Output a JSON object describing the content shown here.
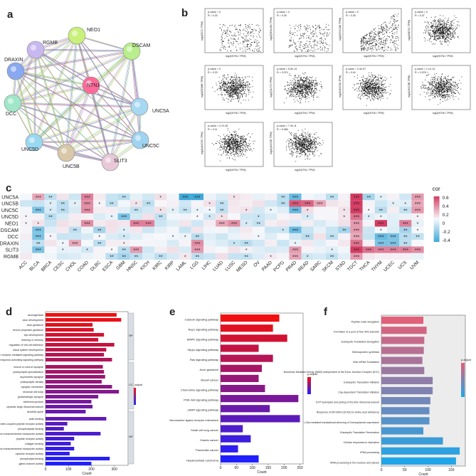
{
  "panels": {
    "a": "a",
    "b": "b",
    "c": "c",
    "d": "d",
    "e": "e",
    "f": "f"
  },
  "network": {
    "nodes": [
      "NTN1",
      "NEO1",
      "DSCAM",
      "UNC5A",
      "UNC5C",
      "SLIT3",
      "UNC5B",
      "UNC5D",
      "DCC",
      "DRAXIN",
      "RGMB"
    ]
  },
  "scatter": [
    {
      "p": "p-value = 0",
      "r": "R = 0.33",
      "ylabel": "log2(DCC TPM)",
      "xlabel": "log2(NTN1 TPM)"
    },
    {
      "p": "p-value = 0",
      "r": "R = 0.39",
      "ylabel": "log2(DRAXIN TPM)",
      "xlabel": "log2(NTN1 TPM)"
    },
    {
      "p": "p-value = 0",
      "r": "R = 0.25",
      "ylabel": "log2(DSCAM TPM)",
      "xlabel": "log2(NTN1 TPM)"
    },
    {
      "p": "p-value = 0",
      "r": "R = 0.37",
      "ylabel": "log2(NEO1 TPM)",
      "xlabel": "log2(NTN1 TPM)"
    },
    {
      "p": "p-value = 0",
      "r": "R = 0.23",
      "ylabel": "log2(RGMB TPM)",
      "xlabel": "log2(NTN1 TPM)"
    },
    {
      "p": "p-value = 5.5e-13",
      "r": "R = 0.074",
      "ylabel": "log2(SLIT3 TPM)",
      "xlabel": "log2(NTN1 TPM)"
    },
    {
      "p": "p-value = 3.4e-57",
      "r": "R = 0.16",
      "ylabel": "log2(UNC5A TPM)",
      "xlabel": "log2(NTN1 TPM)"
    },
    {
      "p": "p-value = 1.1e-14",
      "r": "R = 0.078",
      "ylabel": "log2(UNC5B TPM)",
      "xlabel": "log2(NTN1 TPM)"
    },
    {
      "p": "p-value = 4.7e-28",
      "r": "R = 0.11",
      "ylabel": "log2(UNC5C TPM)",
      "xlabel": "log2(NTN1 TPM)"
    },
    {
      "p": "p-value = 7.3e-11",
      "r": "R = 0.066",
      "ylabel": "log2(UNC5D TPM)",
      "xlabel": "log2(NTN1 TPM)"
    }
  ],
  "heatmap": {
    "genes": [
      "UNC5A",
      "UNC5B",
      "UNC5C",
      "UNC5D",
      "NEO1",
      "DSCAM",
      "DCC",
      "DRAXIN",
      "SLIT3",
      "RGMB"
    ],
    "cancers": [
      "ACC",
      "BLCA",
      "BRCA",
      "CESC",
      "CHOL",
      "COAD",
      "DLBC",
      "ESCA",
      "GBM",
      "HNSC",
      "KICH",
      "KIRC",
      "KIRP",
      "LAML",
      "LGG",
      "LIHC",
      "LUAD",
      "LUSC",
      "MESO",
      "OV",
      "PAAD",
      "PCPG",
      "PRAD",
      "READ",
      "SARC",
      "SKCM",
      "STAD",
      "TGCT",
      "THCA",
      "THYM",
      "UCEC",
      "UCS",
      "UVM"
    ],
    "legend_title": "cor",
    "legend_ticks": [
      "0.6",
      "0.4",
      "0.2",
      "0",
      "-0.2",
      "-0.4"
    ]
  },
  "go_chart": {
    "terms": [
      "axonogenesis",
      "axon development",
      "axon guidance",
      "neuron projection guidance",
      "eye development",
      "learning or memory",
      "regulation of cell-cell adhesion",
      "visual system development",
      "antigen receptor-mediated signaling pathway",
      "immune response-activating signaling pathway",
      "neuron to neuron synapse",
      "postsynaptic specialization",
      "asymmetric synapse",
      "postsynaptic density",
      "synaptic membrane",
      "neuronal cell body",
      "glutamatergic synapse",
      "adherens junction",
      "cytosolic large ribosomal subunit",
      "dendritic spine",
      "actin binding",
      "G protein-coupled peptide receptor activity",
      "phospholipase binding",
      "metal ion transmembrane transporter activity",
      "peptide receptor activity",
      "collagen binding",
      "sodium ion transmembrane transporter activity",
      "cytokine receptor activity",
      "phospholipid binding",
      "gated channel activity"
    ],
    "counts": [
      310,
      330,
      205,
      210,
      255,
      230,
      300,
      265,
      255,
      290,
      250,
      255,
      260,
      245,
      290,
      320,
      230,
      200,
      205,
      175,
      265,
      95,
      80,
      240,
      125,
      110,
      125,
      105,
      280,
      200
    ],
    "xlabel": "Count",
    "x_ticks": [
      "0",
      "100",
      "200",
      "300"
    ],
    "legend_title": "p.adjust",
    "sections": [
      "BP",
      "CC",
      "MF"
    ]
  },
  "kegg_chart": {
    "terms": [
      "Calcium signaling pathway",
      "Rap1 signaling pathway",
      "MAPK signaling pathway",
      "Hippo signaling pathway",
      "Ras signaling pathway",
      "Axon guidance",
      "Breast cancer",
      "Chemokine signaling pathway",
      "PI3K-Akt signaling pathway",
      "cAMP signaling pathway",
      "Neuroactive ligand-receptor interaction",
      "Small cell lung cancer",
      "Gastric cancer",
      "Pancreatic cancer",
      "Hepatocellular carcinoma"
    ],
    "counts": [
      185,
      165,
      210,
      120,
      165,
      130,
      120,
      140,
      245,
      155,
      250,
      70,
      95,
      55,
      120
    ],
    "xlabel": "Count",
    "x_ticks": [
      "0",
      "50",
      "100",
      "150",
      "200",
      "250"
    ],
    "legend_title": "p.adjust"
  },
  "reactome_chart": {
    "terms": [
      "Peptide chain elongation",
      "Formation of a pool of free 40S subunits",
      "Eukaryotic Translation Elongation",
      "Selenoprotein synthesis",
      "Viral mRNA Translation",
      "Nonsense Mediated Decay (NMD) independent of the Exon Junction Complex (EJC)",
      "Eukaryotic Translation Initiation",
      "Cap-dependent Translation Initiation",
      "GTP hydrolysis and joining of the 60S ribosomal subunit",
      "Response of EIF2AK4 (GCN2) to amino acid deficiency",
      "L13a-mediated translational silencing of Ceruloplasmin expression",
      "Eukaryotic Translation Termination",
      "Cellular responses to starvation",
      "rRNA processing",
      "rRNA processing in the nucleus and cytosol"
    ],
    "counts": [
      90,
      97,
      92,
      91,
      88,
      92,
      110,
      110,
      105,
      103,
      103,
      90,
      132,
      168,
      160
    ],
    "xlabel": "Count",
    "x_ticks": [
      "0",
      "50",
      "100",
      "150"
    ],
    "legend_title": "p.adjust"
  },
  "colors": {
    "hm_pos": "#d23c62",
    "hm_neg": "#3fa8d8",
    "bar_top": "#f01010",
    "bar_bottom": "#2020ff",
    "reactome_top": "#e0607a",
    "reactome_bottom": "#20a6e8"
  }
}
